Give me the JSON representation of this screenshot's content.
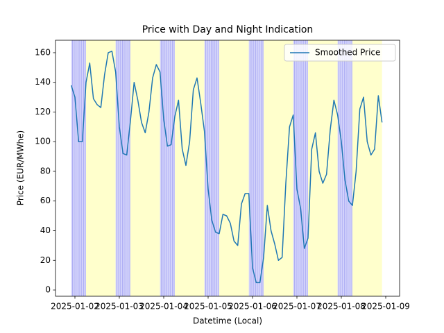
{
  "chart_data": {
    "type": "line",
    "title": "Price with Day and Night Indication",
    "xlabel": "Datetime (Local)",
    "ylabel": "Price (EUR/MWhe)",
    "x": [
      "2025-01-01 22:00",
      "2025-01-02 00:00",
      "2025-01-02 02:00",
      "2025-01-02 04:00",
      "2025-01-02 06:00",
      "2025-01-02 08:00",
      "2025-01-02 10:00",
      "2025-01-02 12:00",
      "2025-01-02 14:00",
      "2025-01-02 16:00",
      "2025-01-02 18:00",
      "2025-01-02 20:00",
      "2025-01-02 22:00",
      "2025-01-03 00:00",
      "2025-01-03 02:00",
      "2025-01-03 04:00",
      "2025-01-03 06:00",
      "2025-01-03 08:00",
      "2025-01-03 10:00",
      "2025-01-03 12:00",
      "2025-01-03 14:00",
      "2025-01-03 16:00",
      "2025-01-03 18:00",
      "2025-01-03 20:00",
      "2025-01-03 22:00",
      "2025-01-04 00:00",
      "2025-01-04 02:00",
      "2025-01-04 04:00",
      "2025-01-04 06:00",
      "2025-01-04 08:00",
      "2025-01-04 10:00",
      "2025-01-04 12:00",
      "2025-01-04 14:00",
      "2025-01-04 16:00",
      "2025-01-04 18:00",
      "2025-01-04 20:00",
      "2025-01-04 22:00",
      "2025-01-05 00:00",
      "2025-01-05 02:00",
      "2025-01-05 04:00",
      "2025-01-05 06:00",
      "2025-01-05 08:00",
      "2025-01-05 10:00",
      "2025-01-05 12:00",
      "2025-01-05 14:00",
      "2025-01-05 16:00",
      "2025-01-05 18:00",
      "2025-01-05 20:00",
      "2025-01-05 22:00",
      "2025-01-06 00:00",
      "2025-01-06 02:00",
      "2025-01-06 04:00",
      "2025-01-06 06:00",
      "2025-01-06 08:00",
      "2025-01-06 10:00",
      "2025-01-06 12:00",
      "2025-01-06 14:00",
      "2025-01-06 16:00",
      "2025-01-06 18:00",
      "2025-01-06 20:00",
      "2025-01-06 22:00",
      "2025-01-07 00:00",
      "2025-01-07 02:00",
      "2025-01-07 04:00",
      "2025-01-07 06:00",
      "2025-01-07 08:00",
      "2025-01-07 10:00",
      "2025-01-07 12:00",
      "2025-01-07 14:00",
      "2025-01-07 16:00",
      "2025-01-07 18:00",
      "2025-01-07 20:00",
      "2025-01-07 22:00",
      "2025-01-08 00:00",
      "2025-01-08 02:00",
      "2025-01-08 04:00",
      "2025-01-08 06:00",
      "2025-01-08 08:00",
      "2025-01-08 10:00",
      "2025-01-08 12:00",
      "2025-01-08 14:00",
      "2025-01-08 16:00",
      "2025-01-08 18:00",
      "2025-01-08 20:00",
      "2025-01-08 22:00"
    ],
    "series": [
      {
        "name": "Smoothed Price",
        "color": "#1f77b4",
        "values": [
          138,
          130,
          100,
          100,
          140,
          153,
          129,
          125,
          123,
          145,
          160,
          161,
          147,
          110,
          92,
          91,
          114,
          140,
          128,
          113,
          106,
          120,
          143,
          152,
          147,
          115,
          97,
          98,
          117,
          128,
          95,
          84,
          100,
          135,
          143,
          126,
          107,
          68,
          47,
          39,
          38,
          51,
          50,
          45,
          33,
          30,
          58,
          65,
          65,
          15,
          5,
          5,
          22,
          57,
          40,
          31,
          20,
          22,
          72,
          110,
          118,
          68,
          55,
          28,
          35,
          95,
          106,
          80,
          72,
          78,
          108,
          128,
          118,
          100,
          74,
          60,
          57,
          80,
          122,
          130,
          100,
          91,
          95,
          131,
          113
        ]
      }
    ],
    "night_periods": [
      [
        "2025-01-01 22:00",
        "2025-01-02 06:00"
      ],
      [
        "2025-01-02 22:00",
        "2025-01-03 06:00"
      ],
      [
        "2025-01-03 22:00",
        "2025-01-04 06:00"
      ],
      [
        "2025-01-04 22:00",
        "2025-01-05 06:00"
      ],
      [
        "2025-01-05 22:00",
        "2025-01-06 06:00"
      ],
      [
        "2025-01-06 22:00",
        "2025-01-07 06:00"
      ],
      [
        "2025-01-07 22:00",
        "2025-01-08 06:00"
      ]
    ],
    "day_periods": [
      [
        "2025-01-02 06:00",
        "2025-01-02 22:00"
      ],
      [
        "2025-01-03 06:00",
        "2025-01-03 22:00"
      ],
      [
        "2025-01-04 06:00",
        "2025-01-04 22:00"
      ],
      [
        "2025-01-05 06:00",
        "2025-01-05 22:00"
      ],
      [
        "2025-01-06 06:00",
        "2025-01-06 22:00"
      ],
      [
        "2025-01-07 06:00",
        "2025-01-07 22:00"
      ],
      [
        "2025-01-08 06:00",
        "2025-01-08 22:00"
      ]
    ],
    "night_color": "#d4d4fb",
    "day_color": "#ffffcc",
    "xlim": [
      "2025-01-01 13:30",
      "2025-01-09 07:30"
    ],
    "xticks": [
      "2025-01-02",
      "2025-01-03",
      "2025-01-04",
      "2025-01-05",
      "2025-01-06",
      "2025-01-07",
      "2025-01-08",
      "2025-01-09"
    ],
    "ylim": [
      -4.2,
      168.4
    ],
    "yticks": [
      0,
      20,
      40,
      60,
      80,
      100,
      120,
      140,
      160
    ],
    "legend": "upper right",
    "grid": false
  }
}
